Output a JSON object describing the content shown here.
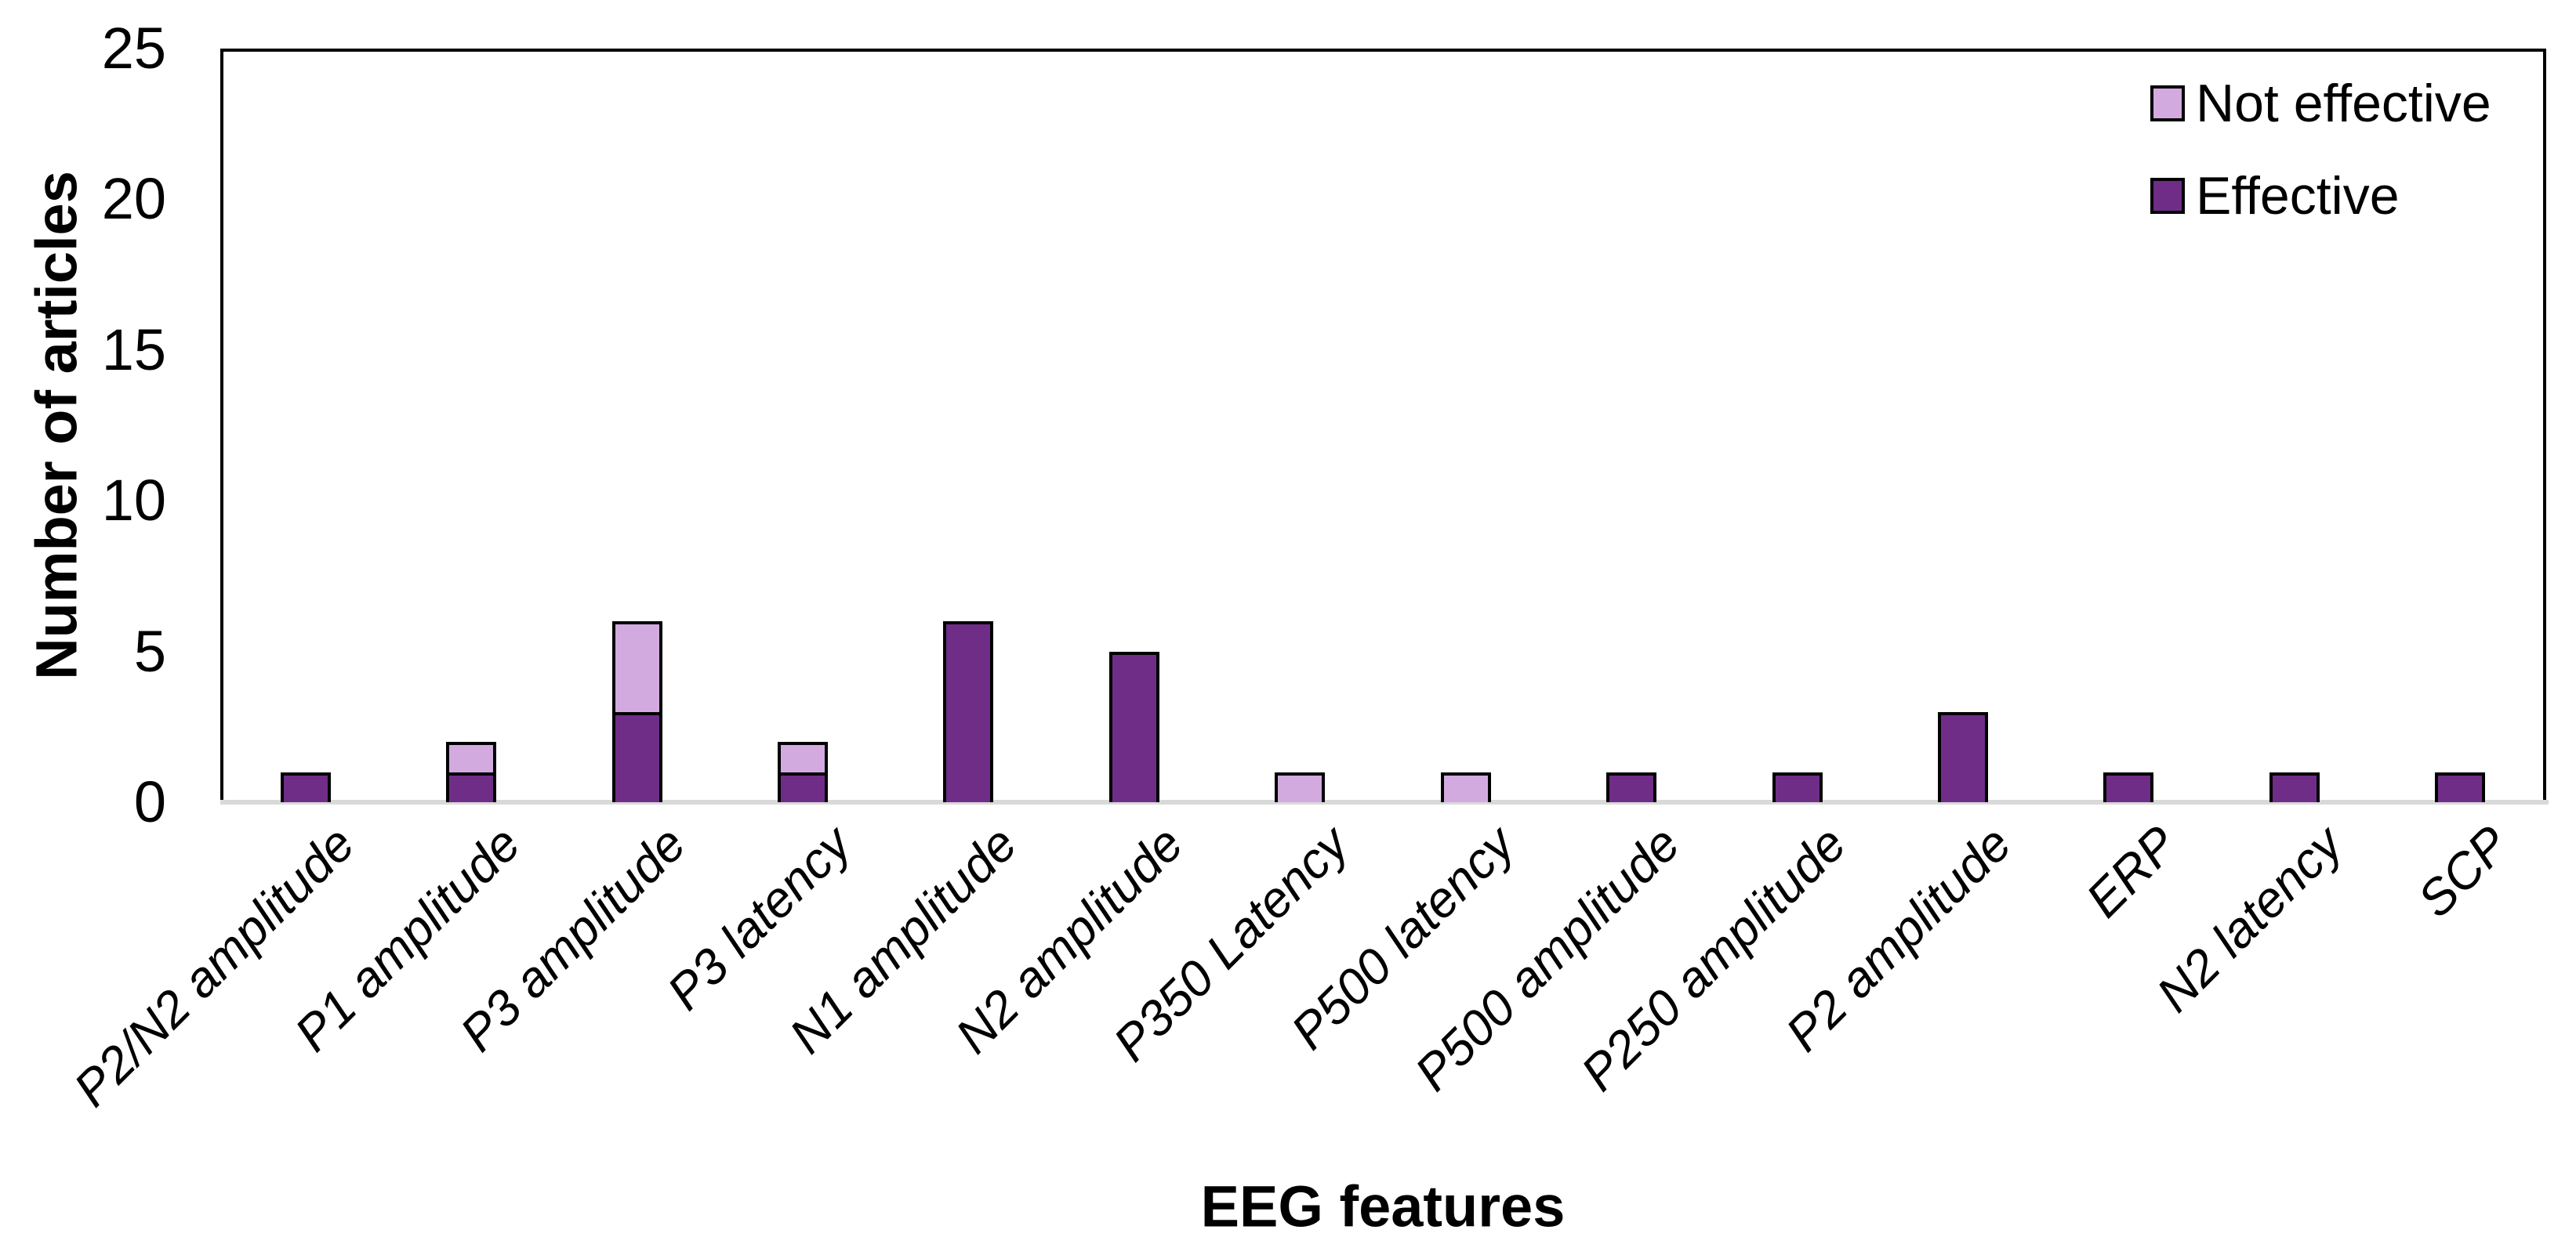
{
  "figure": {
    "background": "#FFFFFF",
    "text_color": "#000000"
  },
  "chart_data": {
    "type": "bar",
    "stacked": true,
    "title": "",
    "xlabel": "EEG features",
    "ylabel": "Number of articles",
    "ylim": [
      0,
      25
    ],
    "yticks": [
      0,
      5,
      10,
      15,
      20,
      25
    ],
    "grid": false,
    "legend_position": "top-right-inside",
    "categories": [
      "P2/N2 amplitude",
      "P1 amplitude",
      "P3 amplitude",
      "P3 latency",
      "N1 amplitude",
      "N2 amplitude",
      "P350 Latency",
      "P500 latency",
      "P500 amplitude",
      "P250 amplitude",
      "P2 amplitude",
      "ERP",
      "N2 latency",
      "SCP"
    ],
    "series": [
      {
        "name": "Not effective",
        "color": "#D3AAE0",
        "values": [
          0,
          1,
          3,
          1,
          0,
          0,
          1,
          1,
          0,
          0,
          0,
          0,
          0,
          0
        ]
      },
      {
        "name": "Effective",
        "color": "#702D88",
        "values": [
          1,
          1,
          3,
          1,
          6,
          5,
          0,
          0,
          1,
          1,
          3,
          1,
          1,
          1
        ]
      }
    ],
    "bar_border_color": "#000000",
    "axis_line_color": "#000000",
    "baseline_color": "#D9D9D9"
  }
}
